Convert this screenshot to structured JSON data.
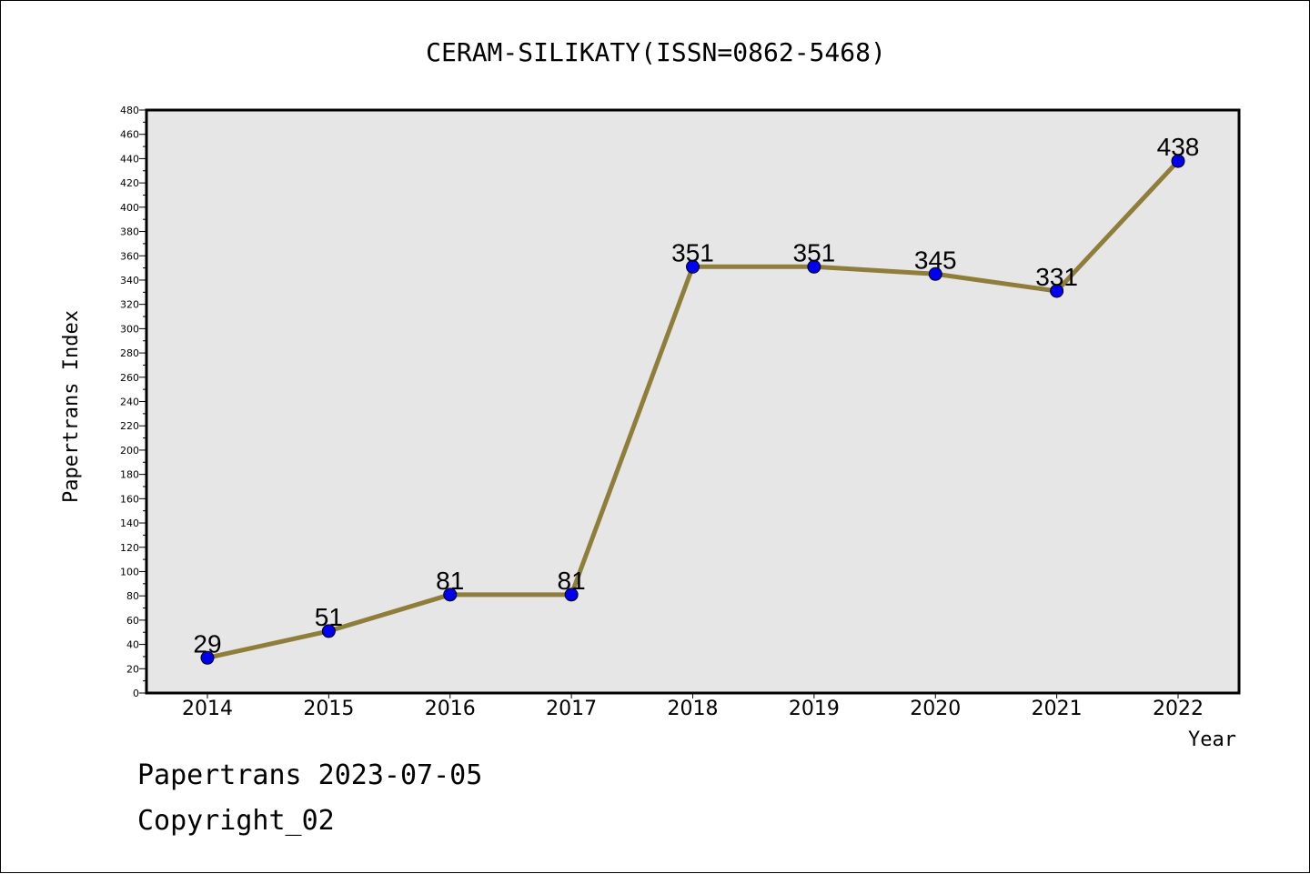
{
  "chart_data": {
    "type": "line",
    "title": "CERAM-SILIKATY(ISSN=0862-5468)",
    "xlabel": "Year",
    "ylabel": "Papertrans Index",
    "categories": [
      "2014",
      "2015",
      "2016",
      "2017",
      "2018",
      "2019",
      "2020",
      "2021",
      "2022"
    ],
    "values": [
      29,
      51,
      81,
      81,
      351,
      351,
      345,
      331,
      438
    ],
    "data_labels": [
      "29",
      "51",
      "81",
      "81",
      "351",
      "351",
      "345",
      "331",
      "438"
    ],
    "ylim": [
      0,
      480
    ],
    "yticks": [
      0,
      20,
      40,
      60,
      80,
      100,
      120,
      140,
      160,
      180,
      200,
      220,
      240,
      260,
      280,
      300,
      320,
      340,
      360,
      380,
      400,
      420,
      440,
      460,
      480
    ],
    "grid": false,
    "legend": "none",
    "line_color": "#8f7d3a",
    "marker_color": "#0000ee",
    "plot_background": "#e6e6e6"
  },
  "footer": {
    "line1": "Papertrans 2023-07-05",
    "line2": "Copyright_02"
  }
}
